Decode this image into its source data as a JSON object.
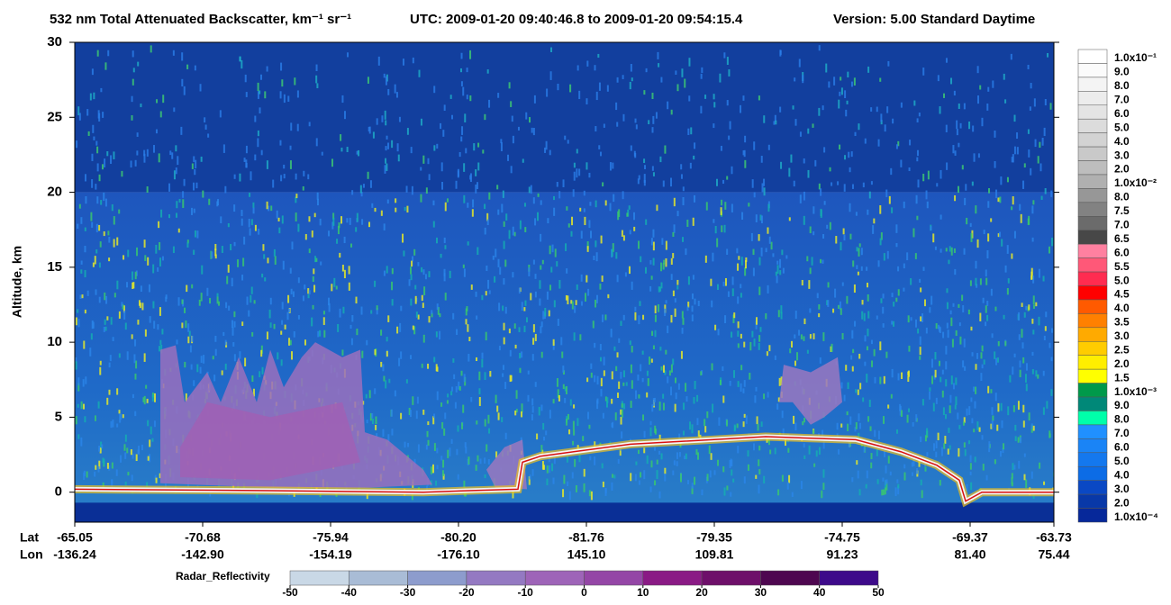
{
  "chart_data": {
    "type": "curtain",
    "title": "532 nm Total Attenuated Backscatter, km⁻¹ sr⁻¹",
    "time_range": "UTC:  2009-01-20 09:40:46.8  to  2009-01-20 09:54:15.4",
    "version": "Version: 5.00  Standard  Daytime",
    "ylabel": "Altitude, km",
    "ylim": [
      -2,
      30
    ],
    "yticks": [
      0,
      5,
      10,
      15,
      20,
      25,
      30
    ],
    "x_labels": {
      "lat_label": "Lat",
      "lon_label": "Lon",
      "lat": [
        "-65.05",
        "-70.68",
        "-75.94",
        "-80.20",
        "-81.76",
        "-79.35",
        "-74.75",
        "-69.37",
        "-63.73"
      ],
      "lon": [
        "-136.24",
        "-142.90",
        "-154.19",
        "-176.10",
        "145.10",
        "109.81",
        "91.23",
        "81.40",
        "75.44"
      ]
    },
    "colorbar": {
      "labels": [
        "1.0x10⁻¹",
        "9.0",
        "8.0",
        "7.0",
        "6.0",
        "5.0",
        "4.0",
        "3.0",
        "2.0",
        "1.0x10⁻²",
        "8.0",
        "7.5",
        "7.0",
        "6.5",
        "6.0",
        "5.5",
        "5.0",
        "4.5",
        "4.0",
        "3.5",
        "3.0",
        "2.5",
        "2.0",
        "1.5",
        "1.0x10⁻³",
        "9.0",
        "8.0",
        "7.0",
        "6.0",
        "5.0",
        "4.0",
        "3.0",
        "2.0",
        "1.0x10⁻⁴"
      ],
      "colors": [
        "#ffffff",
        "#fbfbfb",
        "#f4f4f4",
        "#ececec",
        "#e4e4e4",
        "#dcdcdc",
        "#d3d3d3",
        "#c9c9c9",
        "#bdbdbd",
        "#b0b0b0",
        "#979797",
        "#828282",
        "#6b6b6b",
        "#474747",
        "#ff80a0",
        "#ff5878",
        "#ff2c50",
        "#ff0000",
        "#ff5a00",
        "#ff8000",
        "#ffaa00",
        "#ffcc00",
        "#ffee00",
        "#ffff00",
        "#00994a",
        "#008878",
        "#00ffaa",
        "#2090ff",
        "#1a84f6",
        "#1478ee",
        "#0c6ce6",
        "#0a48c4",
        "#0838a8",
        "#06289a"
      ]
    },
    "radar_colorbar": {
      "label": "Radar_Reflectivity",
      "lim": [
        -50,
        50
      ],
      "ticks": [
        -50,
        -40,
        -30,
        -20,
        -10,
        0,
        10,
        20,
        30,
        40,
        50
      ],
      "colors": [
        "#c9d8e6",
        "#a9bcd6",
        "#8d9ccd",
        "#9479c2",
        "#9e64b8",
        "#9446a6",
        "#8a1a85",
        "#6e0f6a",
        "#4e0750",
        "#3d0a8a"
      ]
    }
  }
}
